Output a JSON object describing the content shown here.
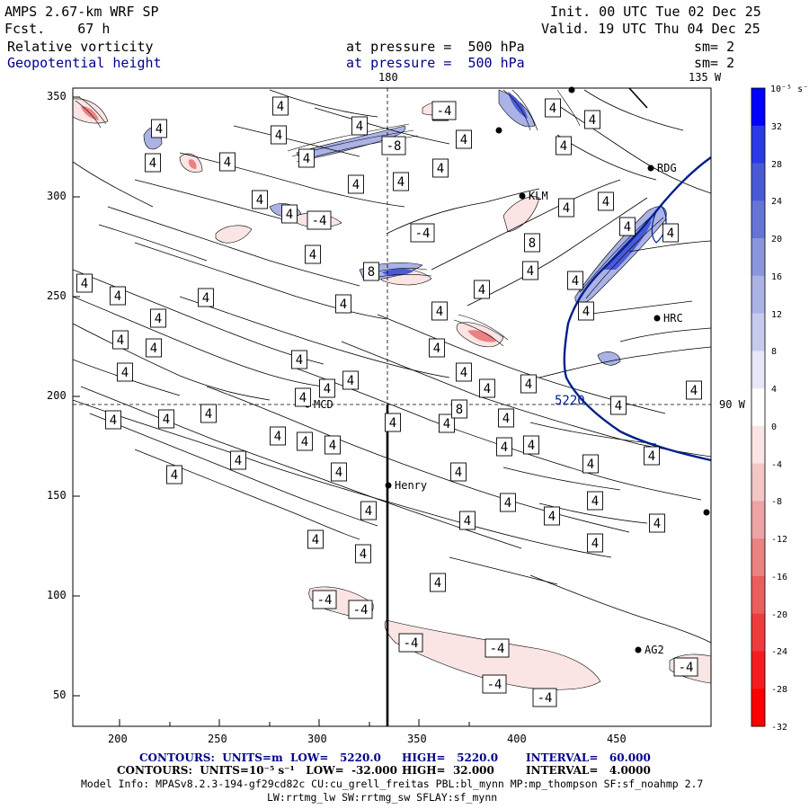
{
  "header": {
    "model": "AMPS 2.67-km WRF SP",
    "fcst": "Fcst.    67 h",
    "init": "Init. 00 UTC Tue 02 Dec 25",
    "valid": "Valid. 19 UTC Thu 04 Dec 25",
    "field1": "Relative vorticity",
    "field1_level": "at pressure =  500 hPa",
    "field1_sm": "sm= 2",
    "field2": "Geopotential height",
    "field2_level": "at pressure =  500 hPa",
    "field2_sm": "sm= 2"
  },
  "map_labels": {
    "lon_180": "180",
    "lon_135w": "135 W",
    "lon_90w": "90 W"
  },
  "axes": {
    "xticks": [
      "200",
      "250",
      "300",
      "350",
      "400",
      "450"
    ],
    "yticks": [
      "350",
      "300",
      "250",
      "200",
      "150",
      "100",
      "50"
    ]
  },
  "stations": [
    {
      "name": "RDG"
    },
    {
      "name": "KLM"
    },
    {
      "name": "HRC"
    },
    {
      "name": "MCD"
    },
    {
      "name": "Henry"
    },
    {
      "name": "AG2"
    }
  ],
  "height_contour_label": "5220",
  "colorbar": {
    "unit": "10⁻⁵ s⁻¹",
    "labels": [
      "32",
      "28",
      "24",
      "20",
      "16",
      "12",
      "8",
      "4",
      "0",
      "-4",
      "-8",
      "-12",
      "-16",
      "-20",
      "-24",
      "-28",
      "-32"
    ],
    "colors": [
      "#0000ff",
      "#2a3be6",
      "#4a5ad6",
      "#6674d6",
      "#8a95dd",
      "#aab2e6",
      "#c6cbee",
      "#e6e8f8",
      "#ffffff",
      "#fbe4e4",
      "#f4c6c6",
      "#eea4a4",
      "#ea8282",
      "#ea5e5e",
      "#ee3c3c",
      "#f41c1c",
      "#ff0000"
    ]
  },
  "footer": {
    "line1_a": "CONTOURS:  UNITS=m  LOW=   5220.0",
    "line1_b": "HIGH=   5220.0",
    "line1_c": "INTERVAL=   60.000",
    "line2_a": "CONTOURS:  UNITS=10⁻⁵ s⁻¹   LOW=  -32.000",
    "line2_b": "HIGH=  32.000",
    "line2_c": "INTERVAL=   4.0000",
    "line3": "Model Info: MPASv8.2.3-194-gf29cd82c CU:cu_grell_freitas PBL:bl_mynn MP:mp_thompson SF:sf_noahmp 2.7",
    "line4": "LW:rrtmg_lw SW:rrtmg_sw SFLAY:sf_mynn"
  },
  "box_labels": {
    "pos4": "4",
    "neg4": "-4",
    "pos8": "8",
    "neg8": "-8"
  }
}
